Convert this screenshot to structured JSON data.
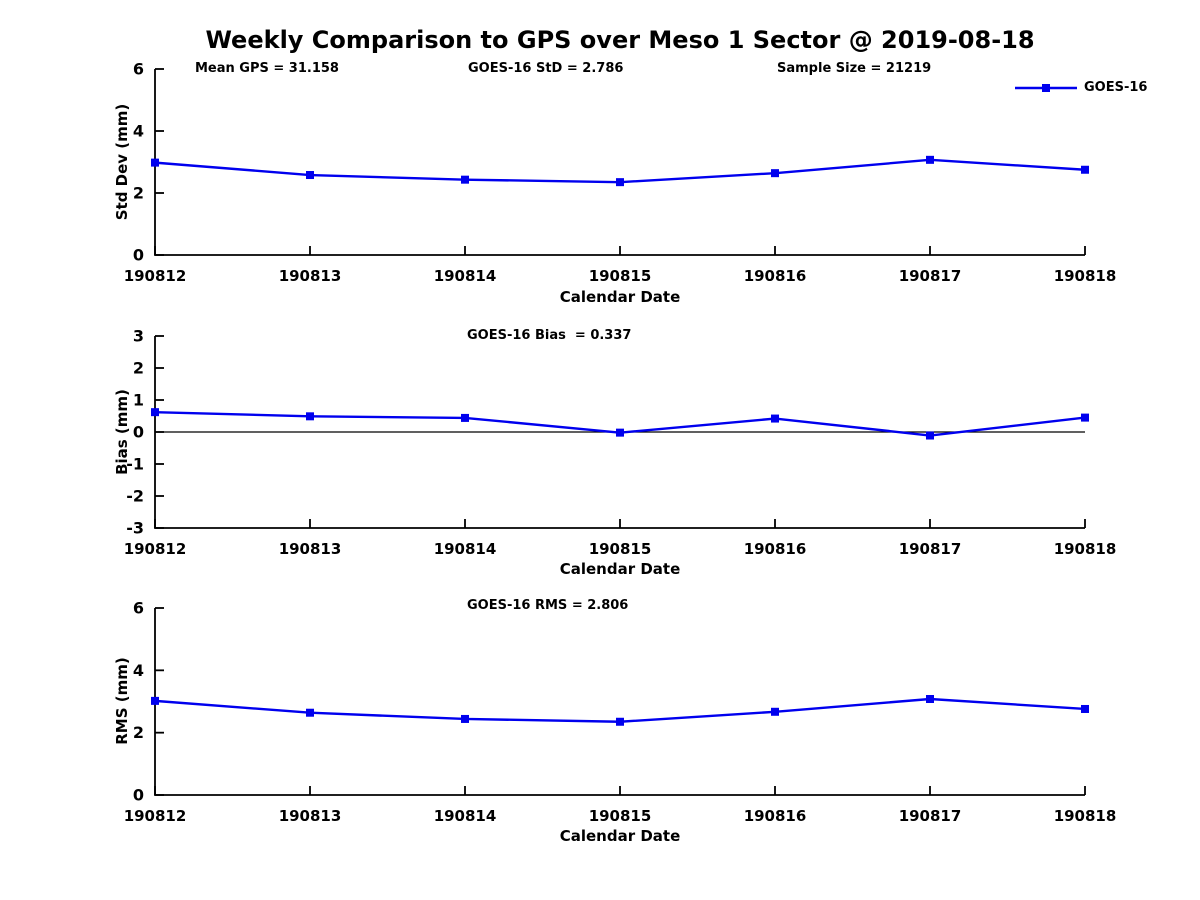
{
  "figure": {
    "title": "Weekly Comparison to GPS over Meso 1 Sector @ 2019-08-18",
    "background_color": "#FFFFFF",
    "text_color": "#000000",
    "accent_color": "#0000EE"
  },
  "legend": {
    "label": "GOES-16",
    "color": "#0000EE",
    "marker": "filled-square",
    "position": "top-right"
  },
  "chart_data": [
    {
      "type": "line",
      "panel": "std-dev",
      "title": "",
      "ylabel": "Std Dev (mm)",
      "xlabel": "Calendar Date",
      "categories": [
        "190812",
        "190813",
        "190814",
        "190815",
        "190816",
        "190817",
        "190818"
      ],
      "series": [
        {
          "name": "GOES-16",
          "values": [
            2.98,
            2.58,
            2.43,
            2.35,
            2.64,
            3.07,
            2.75
          ]
        }
      ],
      "ylim": [
        0,
        6
      ],
      "yticks": [
        0,
        2,
        4,
        6
      ],
      "grid": false,
      "zero_line": false,
      "annotations": [
        {
          "text": "Mean GPS = 31.158"
        },
        {
          "text": "GOES-16 StD = 2.786"
        },
        {
          "text": "Sample Size = 21219"
        }
      ]
    },
    {
      "type": "line",
      "panel": "bias",
      "title": "",
      "ylabel": "Bias (mm)",
      "xlabel": "Calendar Date",
      "categories": [
        "190812",
        "190813",
        "190814",
        "190815",
        "190816",
        "190817",
        "190818"
      ],
      "series": [
        {
          "name": "GOES-16",
          "values": [
            0.62,
            0.49,
            0.44,
            -0.02,
            0.42,
            -0.11,
            0.45
          ]
        }
      ],
      "ylim": [
        -3,
        3
      ],
      "yticks": [
        -3,
        -2,
        -1,
        0,
        1,
        2,
        3
      ],
      "grid": false,
      "zero_line": true,
      "annotations": [
        {
          "text": "GOES-16 Bias  = 0.337"
        }
      ]
    },
    {
      "type": "line",
      "panel": "rms",
      "title": "",
      "ylabel": "RMS (mm)",
      "xlabel": "Calendar Date",
      "categories": [
        "190812",
        "190813",
        "190814",
        "190815",
        "190816",
        "190817",
        "190818"
      ],
      "series": [
        {
          "name": "GOES-16",
          "values": [
            3.02,
            2.64,
            2.44,
            2.35,
            2.67,
            3.08,
            2.76
          ]
        }
      ],
      "ylim": [
        0,
        6
      ],
      "yticks": [
        0,
        2,
        4,
        6
      ],
      "grid": false,
      "zero_line": false,
      "annotations": [
        {
          "text": "GOES-16 RMS = 2.806"
        }
      ]
    }
  ]
}
